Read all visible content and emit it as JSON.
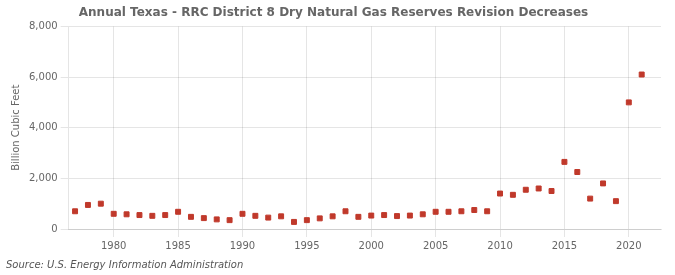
{
  "chart_data": {
    "type": "scatter",
    "title": "Annual Texas - RRC District 8 Dry Natural Gas Reserves Revision Decreases",
    "ylabel": "Billion Cubic Feet",
    "source": "Source: U.S. Energy Information Administration",
    "color": "#c0392b",
    "marker": "square",
    "grid": true,
    "xlim": [
      1976.5,
      2022.5
    ],
    "ylim": [
      0,
      8000
    ],
    "xticks": [
      1980,
      1985,
      1990,
      1995,
      2000,
      2005,
      2010,
      2015,
      2020
    ],
    "yticks": [
      0,
      {
        "value": 2000,
        "label": "2,000"
      },
      {
        "value": 4000,
        "label": "4,000"
      },
      {
        "value": 6000,
        "label": "6,000"
      },
      {
        "value": 8000,
        "label": "8,000"
      }
    ],
    "x": [
      1977,
      1978,
      1979,
      1980,
      1981,
      1982,
      1983,
      1984,
      1985,
      1986,
      1987,
      1988,
      1989,
      1990,
      1991,
      1992,
      1993,
      1994,
      1995,
      1996,
      1997,
      1998,
      1999,
      2000,
      2001,
      2002,
      2003,
      2004,
      2005,
      2006,
      2007,
      2008,
      2009,
      2010,
      2011,
      2012,
      2013,
      2014,
      2015,
      2016,
      2017,
      2018,
      2019,
      2020,
      2021
    ],
    "values": [
      700,
      950,
      1000,
      600,
      580,
      550,
      520,
      550,
      680,
      480,
      430,
      380,
      350,
      600,
      520,
      450,
      500,
      280,
      350,
      420,
      500,
      700,
      480,
      530,
      550,
      510,
      530,
      580,
      680,
      680,
      700,
      750,
      700,
      1400,
      1350,
      1550,
      1600,
      1500,
      2650,
      2250,
      1200,
      1800,
      1100,
      5000,
      6100
    ]
  }
}
